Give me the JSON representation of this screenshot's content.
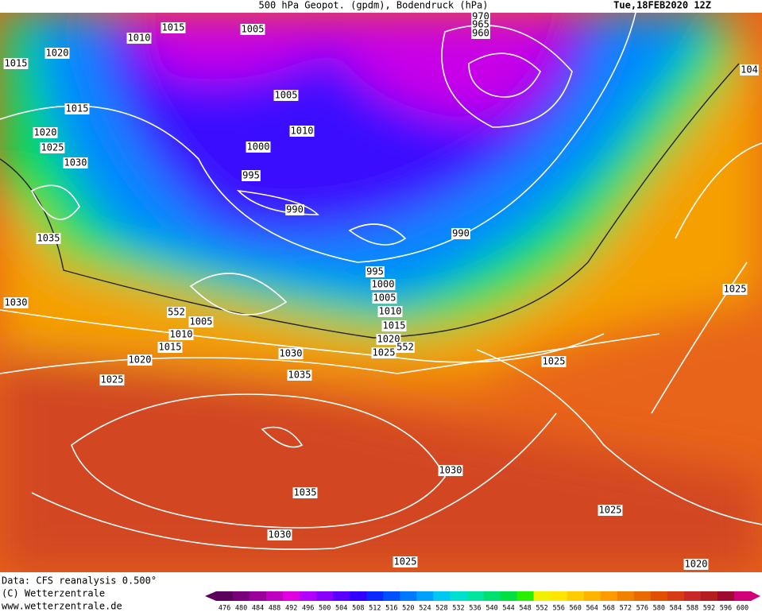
{
  "header": {
    "title": "500 hPa Geopot. (gpdm), Bodendruck (hPa)",
    "date": "Tue,18FEB2020 12Z"
  },
  "credits": [
    "Data: CFS reanalysis 0.500°",
    "(C) Wetterzentrale",
    "www.wetterzentrale.de"
  ],
  "isobar_labels": [
    "1015",
    "1010",
    "1005",
    "970",
    "965",
    "960",
    "1015",
    "1020",
    "1015",
    "1005",
    "1010",
    "1000",
    "995",
    "990",
    "1020",
    "1025",
    "1030",
    "1035",
    "1030",
    "990",
    "995",
    "1000",
    "1005",
    "1010",
    "1015",
    "1020",
    "1025",
    "552",
    "1005",
    "1010",
    "1015",
    "1020",
    "1025",
    "1030",
    "1035",
    "1025",
    "1025",
    "104",
    "1030",
    "1035",
    "1030",
    "1025",
    "1025",
    "1020",
    "552"
  ],
  "colorbar": {
    "values": [
      476,
      480,
      484,
      488,
      492,
      496,
      500,
      504,
      508,
      512,
      516,
      520,
      524,
      528,
      532,
      536,
      540,
      544,
      548,
      552,
      556,
      560,
      564,
      568,
      572,
      576,
      580,
      584,
      588,
      592,
      596,
      600
    ],
    "colors": [
      "#5a005a",
      "#78007a",
      "#9a009a",
      "#c000c0",
      "#e000e0",
      "#b400ff",
      "#8a00ff",
      "#5a00ff",
      "#3200ff",
      "#0a28ff",
      "#0050ff",
      "#0078ff",
      "#00a0ff",
      "#00c8f0",
      "#00e0d0",
      "#00e6a0",
      "#00e070",
      "#00e040",
      "#28f000",
      "#f0f000",
      "#ffe600",
      "#ffcc00",
      "#ffb400",
      "#ff9a00",
      "#f08200",
      "#e86a00",
      "#e05000",
      "#d83c14",
      "#c82828",
      "#b41e1e",
      "#a00a32",
      "#d20078"
    ]
  }
}
